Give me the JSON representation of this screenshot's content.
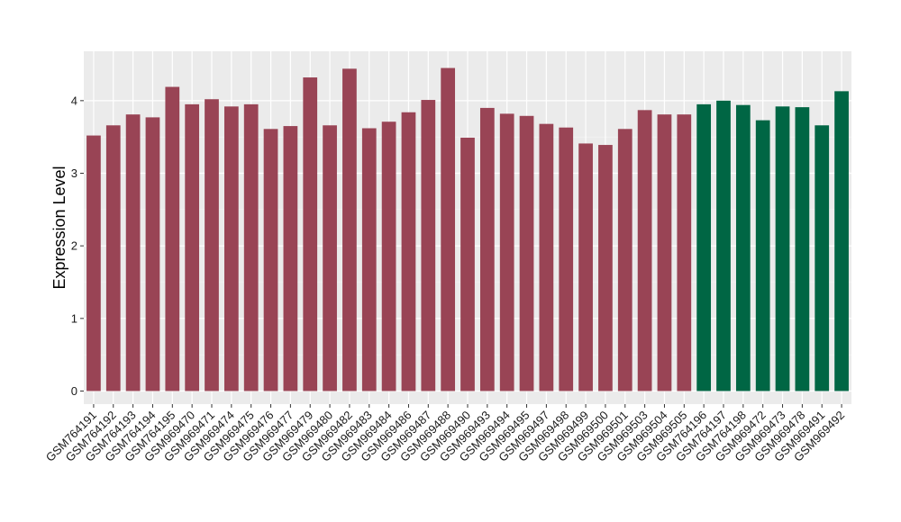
{
  "chart_data": {
    "type": "bar",
    "title": "",
    "xlabel": "",
    "ylabel": "Expression Level",
    "ylim": [
      -0.18,
      4.68
    ],
    "yticks": [
      0,
      1,
      2,
      3,
      4
    ],
    "grid": true,
    "legend": "none",
    "colors": {
      "panel_background": "#ebebeb",
      "grid_major": "#ffffff",
      "grid_minor": "#f5f5f5",
      "group_a": "#994455",
      "group_b": "#006644"
    },
    "categories": [
      "GSM764191",
      "GSM764192",
      "GSM764193",
      "GSM764194",
      "GSM764195",
      "GSM969470",
      "GSM969471",
      "GSM969474",
      "GSM969475",
      "GSM969476",
      "GSM969477",
      "GSM969479",
      "GSM969480",
      "GSM969482",
      "GSM969483",
      "GSM969484",
      "GSM969486",
      "GSM969487",
      "GSM969488",
      "GSM969490",
      "GSM969493",
      "GSM969494",
      "GSM969495",
      "GSM969497",
      "GSM969498",
      "GSM969499",
      "GSM969500",
      "GSM969501",
      "GSM969503",
      "GSM969504",
      "GSM969505",
      "GSM764196",
      "GSM764197",
      "GSM764198",
      "GSM969472",
      "GSM969473",
      "GSM969478",
      "GSM969491",
      "GSM969492"
    ],
    "values": [
      3.52,
      3.66,
      3.81,
      3.77,
      4.19,
      3.95,
      4.02,
      3.92,
      3.95,
      3.61,
      3.65,
      4.32,
      3.66,
      4.44,
      3.62,
      3.71,
      3.84,
      4.01,
      4.45,
      3.49,
      3.9,
      3.82,
      3.79,
      3.68,
      3.63,
      3.41,
      3.39,
      3.61,
      3.87,
      3.81,
      3.81,
      3.95,
      4.0,
      3.94,
      3.73,
      3.92,
      3.91,
      3.66,
      4.13
    ],
    "groups": [
      "a",
      "a",
      "a",
      "a",
      "a",
      "a",
      "a",
      "a",
      "a",
      "a",
      "a",
      "a",
      "a",
      "a",
      "a",
      "a",
      "a",
      "a",
      "a",
      "a",
      "a",
      "a",
      "a",
      "a",
      "a",
      "a",
      "a",
      "a",
      "a",
      "a",
      "a",
      "b",
      "b",
      "b",
      "b",
      "b",
      "b",
      "b",
      "b"
    ]
  }
}
